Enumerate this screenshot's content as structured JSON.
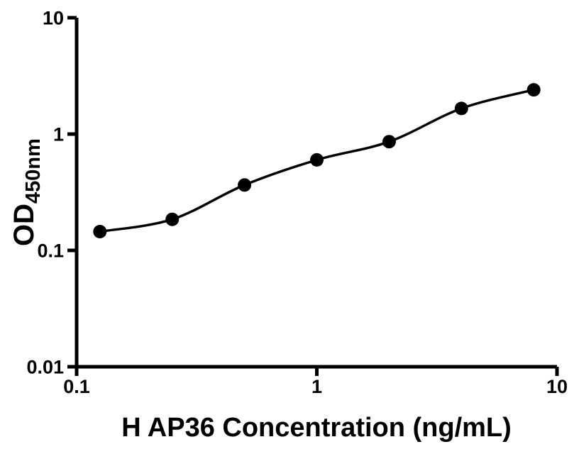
{
  "figure": {
    "background": "#ffffff"
  },
  "chart_data": {
    "type": "scatter",
    "title": "",
    "xlabel": "H AP36 Concentration (ng/mL)",
    "ylabel": "OD450nm",
    "ylabel_main": "OD",
    "ylabel_sub": "450nm",
    "xscale": "log",
    "yscale": "log",
    "xlim": [
      0.1,
      10
    ],
    "ylim": [
      0.01,
      10
    ],
    "grid": false,
    "legend": false,
    "x": [
      0.125,
      0.25,
      0.5,
      1,
      2,
      4,
      8
    ],
    "y": [
      0.145,
      0.185,
      0.365,
      0.6,
      0.86,
      1.66,
      2.4
    ],
    "fit_line": "smooth sigmoidal (4PL-style) curve through the data points",
    "x_ticks": [
      {
        "value": 0.1,
        "label": "0.1"
      },
      {
        "value": 1,
        "label": "1"
      },
      {
        "value": 10,
        "label": "10"
      }
    ],
    "y_ticks": [
      {
        "value": 0.01,
        "label": "0.01"
      },
      {
        "value": 0.1,
        "label": "0.1"
      },
      {
        "value": 1,
        "label": "1"
      },
      {
        "value": 10,
        "label": "10"
      }
    ],
    "marker_color": "#000000",
    "line_color": "#000000",
    "axis_color": "#000000",
    "text_color": "#000000"
  }
}
